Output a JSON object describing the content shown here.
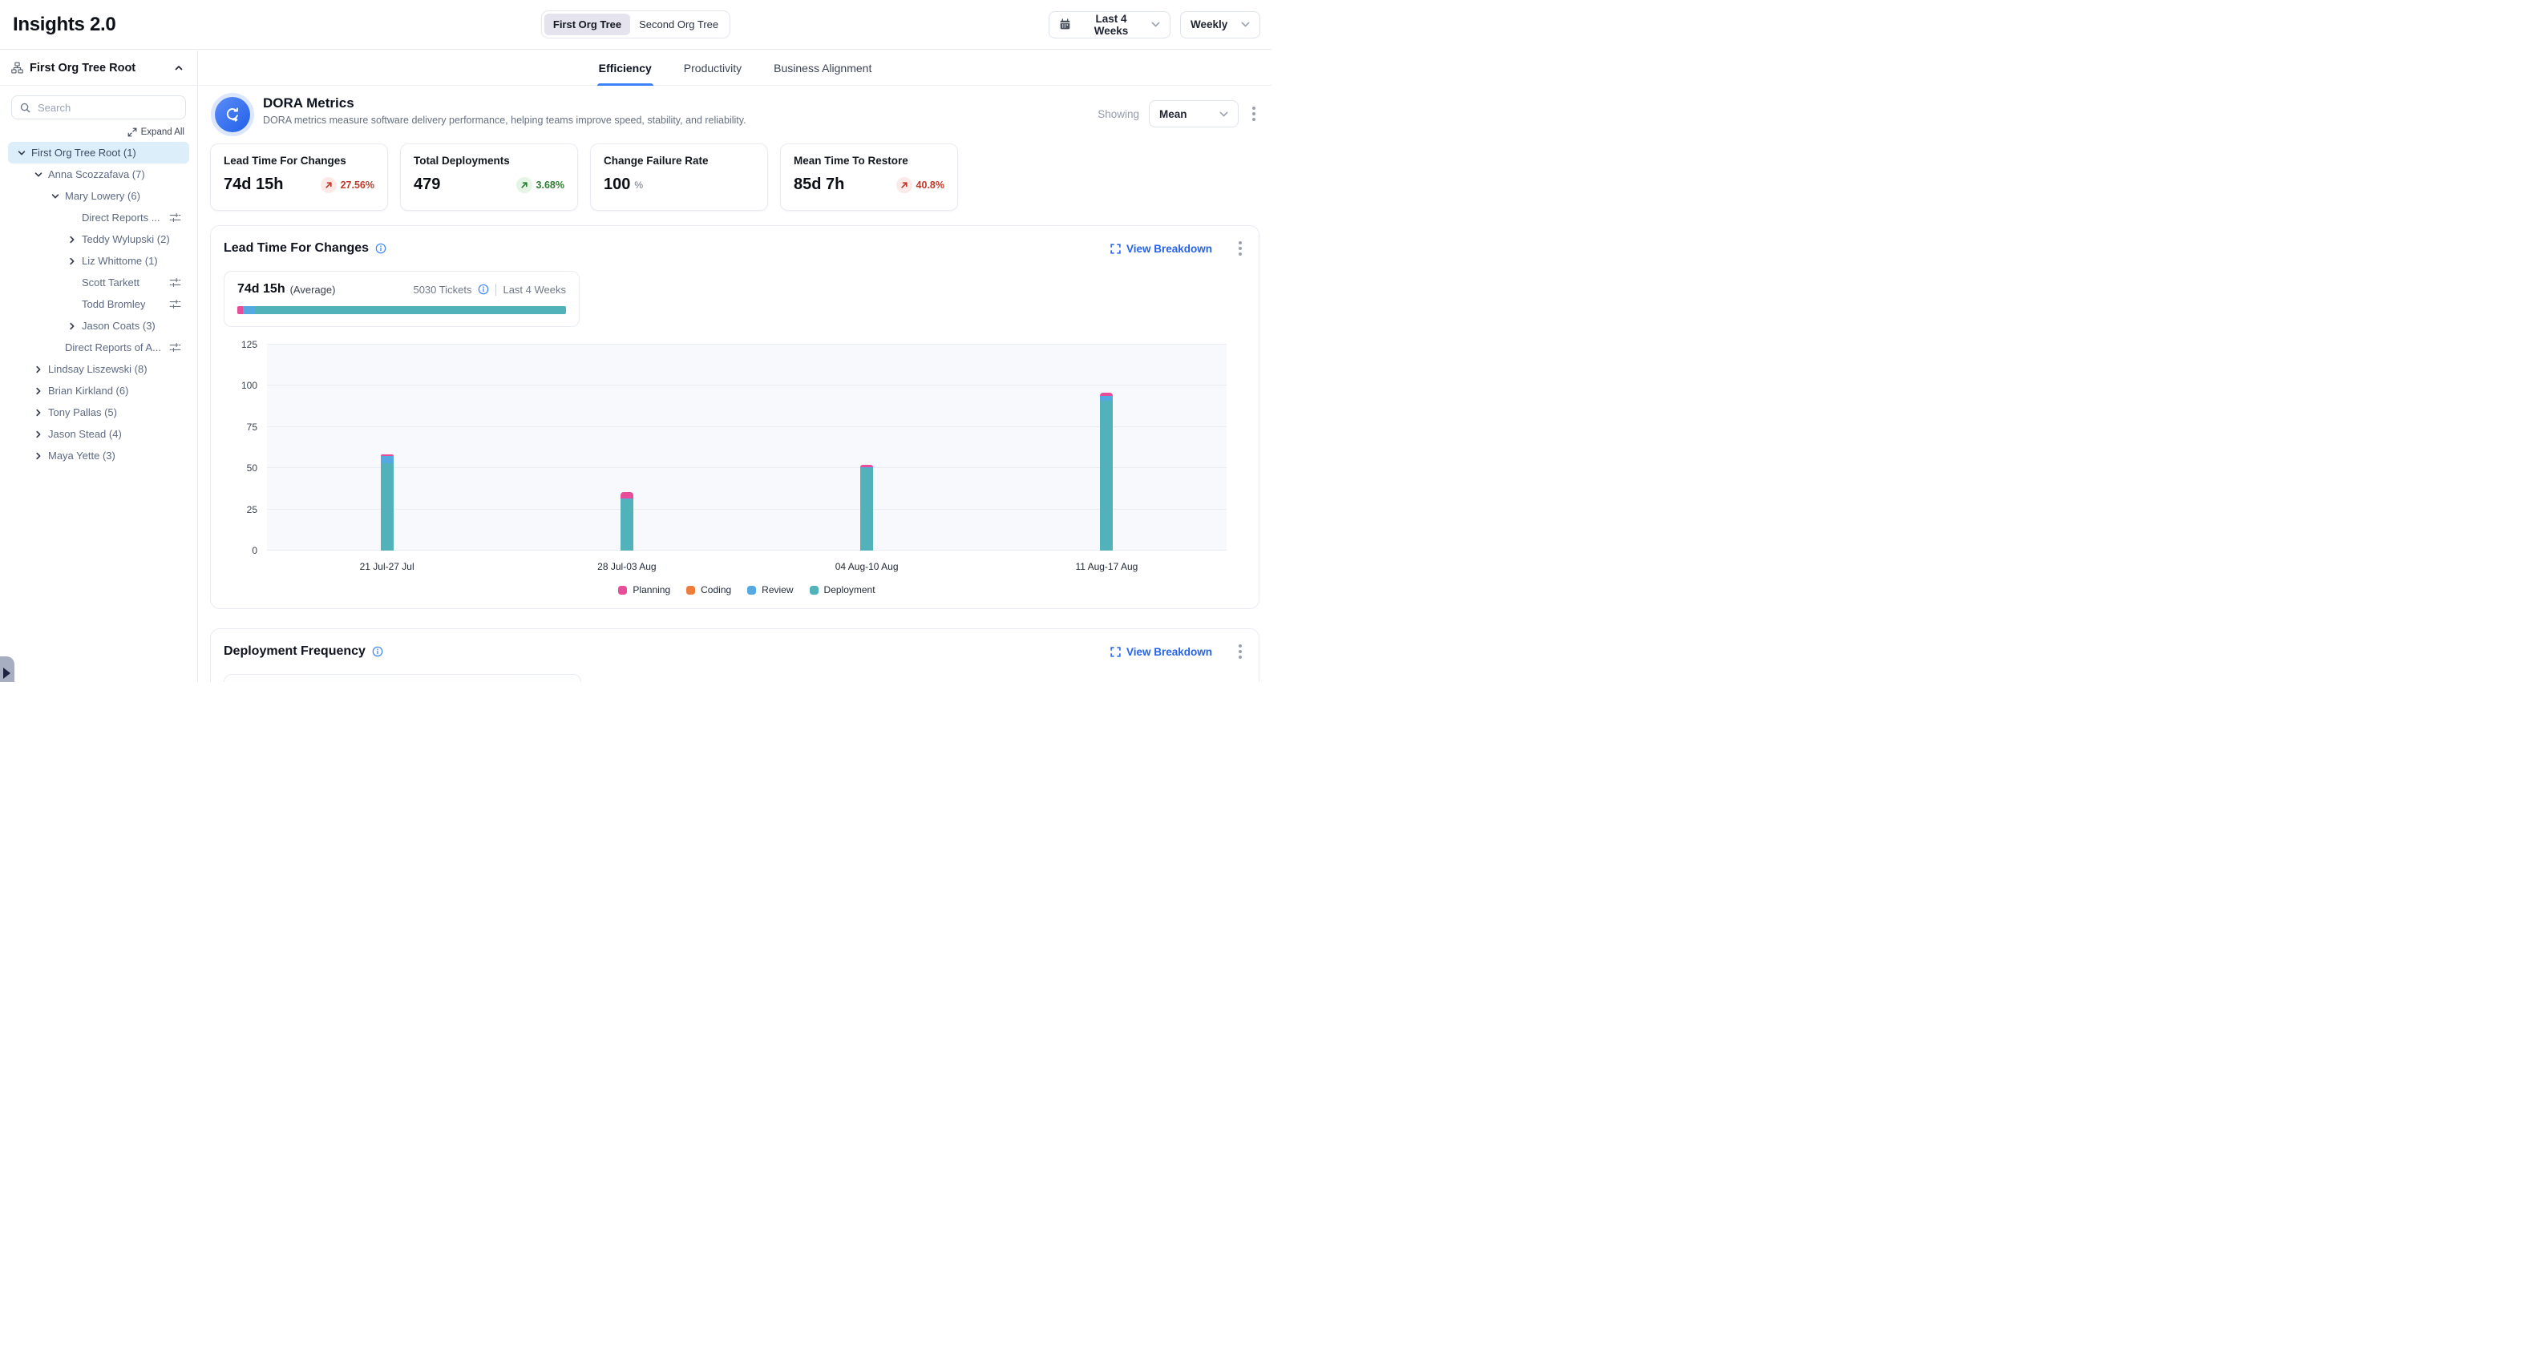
{
  "header": {
    "title": "Insights 2.0",
    "org_toggle": [
      {
        "label": "First Org Tree",
        "active": true
      },
      {
        "label": "Second Org Tree",
        "active": false
      }
    ],
    "date_range": "Last 4 Weeks",
    "granularity": "Weekly"
  },
  "sidebar": {
    "root_label": "First Org Tree Root",
    "search_placeholder": "Search",
    "expand_all_label": "Expand All",
    "tree": [
      {
        "label": "First Org Tree Root (1)",
        "level": 0,
        "chevron": "down",
        "selected": true
      },
      {
        "label": "Anna Scozzafava (7)",
        "level": 1,
        "chevron": "down"
      },
      {
        "label": "Mary Lowery (6)",
        "level": 2,
        "chevron": "down"
      },
      {
        "label": "Direct Reports ...",
        "level": 3,
        "chevron": "none",
        "filter_icon": true
      },
      {
        "label": "Teddy Wylupski (2)",
        "level": 3,
        "chevron": "right"
      },
      {
        "label": "Liz Whittome (1)",
        "level": 3,
        "chevron": "right"
      },
      {
        "label": "Scott Tarkett",
        "level": 3,
        "chevron": "none",
        "filter_icon": true
      },
      {
        "label": "Todd Bromley",
        "level": 3,
        "chevron": "none",
        "filter_icon": true
      },
      {
        "label": "Jason Coats (3)",
        "level": 3,
        "chevron": "right"
      },
      {
        "label": "Direct Reports of A...",
        "level": 2,
        "chevron": "none",
        "filter_icon": true
      },
      {
        "label": "Lindsay Liszewski (8)",
        "level": 1,
        "chevron": "right"
      },
      {
        "label": "Brian Kirkland (6)",
        "level": 1,
        "chevron": "right"
      },
      {
        "label": "Tony Pallas (5)",
        "level": 1,
        "chevron": "right"
      },
      {
        "label": "Jason Stead (4)",
        "level": 1,
        "chevron": "right"
      },
      {
        "label": "Maya Yette (3)",
        "level": 1,
        "chevron": "right"
      }
    ]
  },
  "tabs": [
    {
      "label": "Efficiency",
      "active": true
    },
    {
      "label": "Productivity",
      "active": false
    },
    {
      "label": "Business Alignment",
      "active": false
    }
  ],
  "dora": {
    "title": "DORA Metrics",
    "subtitle": "DORA metrics measure software delivery performance, helping teams improve speed, stability, and reliability.",
    "showing_label": "Showing",
    "showing_value": "Mean",
    "cards": [
      {
        "label": "Lead Time For Changes",
        "value": "74d 15h",
        "delta": "27.56%",
        "direction": "up",
        "tone": "bad"
      },
      {
        "label": "Total Deployments",
        "value": "479",
        "delta": "3.68%",
        "direction": "up",
        "tone": "good"
      },
      {
        "label": "Change Failure Rate",
        "value": "100",
        "unit": "%"
      },
      {
        "label": "Mean Time To Restore",
        "value": "85d 7h",
        "delta": "40.8%",
        "direction": "up",
        "tone": "bad"
      }
    ]
  },
  "lead_time_section": {
    "title": "Lead Time For Changes",
    "view_breakdown_label": "View Breakdown",
    "summary": {
      "value": "74d 15h",
      "suffix": "(Average)",
      "tickets": "5030 Tickets",
      "range": "Last 4 Weeks",
      "bar_segments": [
        {
          "name": "Planning",
          "pct": 1.8,
          "color": "#e84d9a"
        },
        {
          "name": "Review",
          "pct": 3.3,
          "color": "#55a8e2"
        },
        {
          "name": "Deployment",
          "pct": 94.9,
          "color": "#52b2ba"
        }
      ]
    },
    "chart_data": {
      "type": "bar",
      "stacked": true,
      "title": "Lead Time For Changes",
      "xlabel": "",
      "ylabel": "",
      "categories": [
        "21 Jul-27 Jul",
        "28 Jul-03 Aug",
        "04 Aug-10 Aug",
        "11 Aug-17 Aug"
      ],
      "series": [
        {
          "name": "Planning",
          "color": "#e84d9a",
          "values": [
            0.9,
            3.6,
            1.2,
            2.0
          ]
        },
        {
          "name": "Coding",
          "color": "#ee7d3b",
          "values": [
            0,
            0,
            0,
            0
          ]
        },
        {
          "name": "Review",
          "color": "#55a8e2",
          "values": [
            4.4,
            0.7,
            0.8,
            3.0
          ]
        },
        {
          "name": "Deployment",
          "color": "#52b2ba",
          "values": [
            53,
            31,
            50,
            91
          ]
        }
      ],
      "ylim": [
        0,
        125
      ],
      "yticks": [
        0,
        25,
        50,
        75,
        100,
        125
      ],
      "grid": true,
      "legend_position": "bottom"
    }
  },
  "deployment_frequency_section": {
    "title": "Deployment Frequency",
    "view_breakdown_label": "View Breakdown"
  },
  "colors": {
    "accent_blue": "#3b82f6",
    "link_blue": "#2563eb",
    "negative_red": "#bf3a2b",
    "positive_green": "#2f7d33",
    "selected_row_bg": "#ddeefb",
    "planning_pink": "#e84d9a",
    "coding_orange": "#ee7d3b",
    "review_blue": "#55a8e2",
    "deployment_teal": "#52b2ba"
  }
}
